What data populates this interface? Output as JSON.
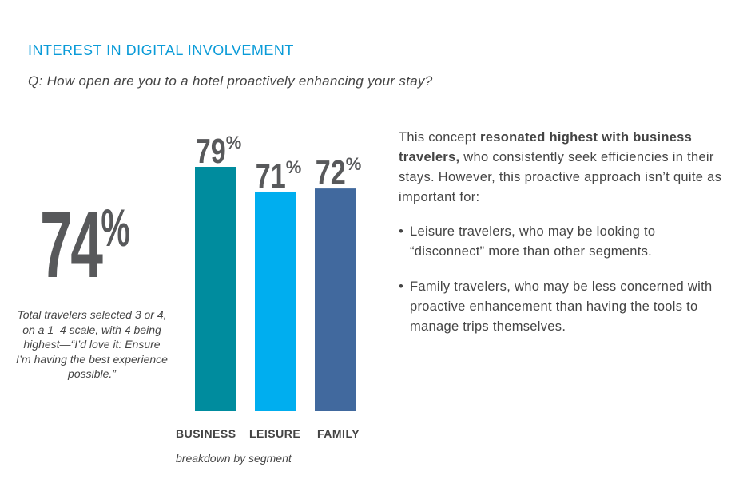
{
  "title": "INTEREST IN DIGITAL INVOLVEMENT",
  "question": "Q: How open are you to a hotel proactively enhancing your stay?",
  "headline": {
    "value": "74",
    "unit": "%",
    "note": "Total travelers selected 3 or 4, on a 1–4 scale, with 4 being highest—“I’d love it: Ensure I’m having the best experience possible.”"
  },
  "body": {
    "intro_pre": "This concept ",
    "intro_bold": "resonated highest with business travelers,",
    "intro_post": " who consistently seek efficiencies in their stays. However, this proactive approach isn’t quite as important for:",
    "bullets": [
      "Leisure travelers, who may be looking to “disconnect” more than other segments.",
      "Family travelers, who may be less concerned with proactive enhancement than having the tools to manage trips themselves."
    ]
  },
  "chart_data": {
    "type": "bar",
    "categories": [
      "BUSINESS",
      "LEISURE",
      "FAMILY"
    ],
    "values": [
      79,
      71,
      72
    ],
    "labels": [
      "79",
      "71",
      "72"
    ],
    "unit": "%",
    "colors": [
      "#008c9e",
      "#00aeef",
      "#41699e"
    ],
    "xlabel": "breakdown by segment",
    "ylim": [
      0,
      79
    ]
  }
}
